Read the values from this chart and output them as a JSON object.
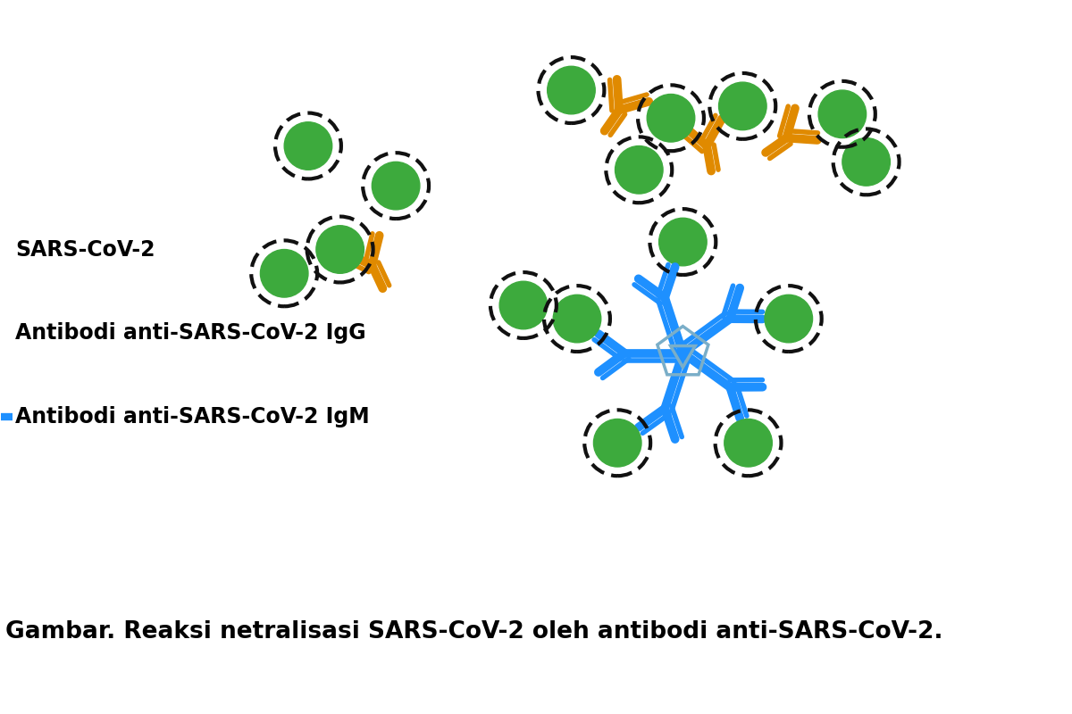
{
  "bg_color": "#ffffff",
  "title_text": "Gambar. Reaksi netralisasi SARS-CoV-2 oleh antibodi anti-SARS-CoV-2.",
  "label_sars": "SARS-CoV-2",
  "label_igg": "Antibodi anti-SARS-CoV-2 IgG",
  "label_igm": "Antibodi anti-SARS-CoV-2 IgM",
  "virus_color_outer": "#111111",
  "virus_color_inner": "#3daa3d",
  "igg_color": "#e08a00",
  "igm_color": "#1e90ff",
  "igm_center_color": "#7aaec8",
  "label_fontsize": 17,
  "title_fontsize": 19,
  "lw_main": 7,
  "lw_para": 4,
  "virus_r": 0.3,
  "virus_lw": 3.0
}
